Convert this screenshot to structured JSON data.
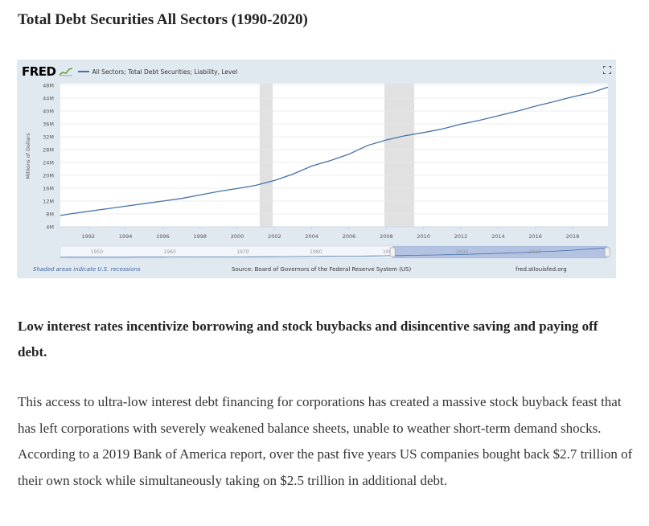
{
  "article": {
    "title": "Total Debt Securities All Sectors (1990-2020)",
    "subheading": "Low interest rates incentivize borrowing and stock buybacks and disincentive saving and paying off debt.",
    "paragraph": "This access to ultra-low interest debt financing for corporations has created a massive stock buyback feast that has left corporations with severely weakened balance sheets, unable to weather short-term demand shocks. According to a 2019 Bank of America report, over the past five years US companies bought back $2.7 trillion of their own stock while simultaneously taking on $2.5 trillion in additional debt."
  },
  "fred": {
    "logo": "FRED",
    "legend_label": "All Sectors; Total Debt Securities; Liability, Level",
    "footnote": "Shaded areas indicate U.S. recessions",
    "source": "Source: Board of Governors of the Federal Reserve System (US)",
    "url": "fred.stlouisfed.org",
    "colors": {
      "series": "#4572a7",
      "background": "#e1e9f0",
      "plot": "#ffffff",
      "recession": "#e1e1e1"
    }
  },
  "chart_data": {
    "type": "line",
    "ylabel": "Millions of Dollars",
    "xlabel": "",
    "title": "",
    "xlim": [
      1990.5,
      2019.9
    ],
    "ylim": [
      4,
      48
    ],
    "y_ticks": [
      "4M",
      "8M",
      "12M",
      "16M",
      "20M",
      "24M",
      "28M",
      "32M",
      "36M",
      "40M",
      "44M",
      "48M"
    ],
    "y_tick_values": [
      4,
      8,
      12,
      16,
      20,
      24,
      28,
      32,
      36,
      40,
      44,
      48
    ],
    "x_ticks": [
      "1992",
      "1994",
      "1996",
      "1998",
      "2000",
      "2002",
      "2004",
      "2006",
      "2008",
      "2010",
      "2012",
      "2014",
      "2016",
      "2018"
    ],
    "x_tick_values": [
      1992,
      1994,
      1996,
      1998,
      2000,
      2002,
      2004,
      2006,
      2008,
      2010,
      2012,
      2014,
      2016,
      2018
    ],
    "recessions": [
      [
        2001.2,
        2001.9
      ],
      [
        2007.9,
        2009.5
      ]
    ],
    "navigator_ticks": [
      "1950",
      "1960",
      "1970",
      "1980",
      "1990",
      "2000",
      "2010"
    ],
    "navigator_tick_values": [
      1950,
      1960,
      1970,
      1980,
      1990,
      2000,
      2010
    ],
    "navigator_range": [
      1945,
      2020
    ],
    "navigator_selection": [
      1990.5,
      2019.9
    ],
    "series": [
      {
        "name": "All Sectors; Total Debt Securities; Liability, Level",
        "x": [
          1990.5,
          1991,
          1992,
          1993,
          1994,
          1995,
          1996,
          1997,
          1998,
          1999,
          2000,
          2001,
          2002,
          2003,
          2004,
          2005,
          2006,
          2007,
          2008,
          2009,
          2010,
          2011,
          2012,
          2013,
          2014,
          2015,
          2016,
          2017,
          2018,
          2019,
          2019.9
        ],
        "y": [
          7.5,
          8.0,
          8.8,
          9.6,
          10.4,
          11.2,
          12.0,
          12.8,
          13.9,
          15.0,
          15.9,
          16.9,
          18.4,
          20.4,
          22.9,
          24.6,
          26.6,
          29.3,
          31.0,
          32.3,
          33.3,
          34.4,
          35.9,
          37.1,
          38.5,
          39.9,
          41.5,
          42.9,
          44.4,
          45.7,
          47.4
        ]
      }
    ]
  }
}
